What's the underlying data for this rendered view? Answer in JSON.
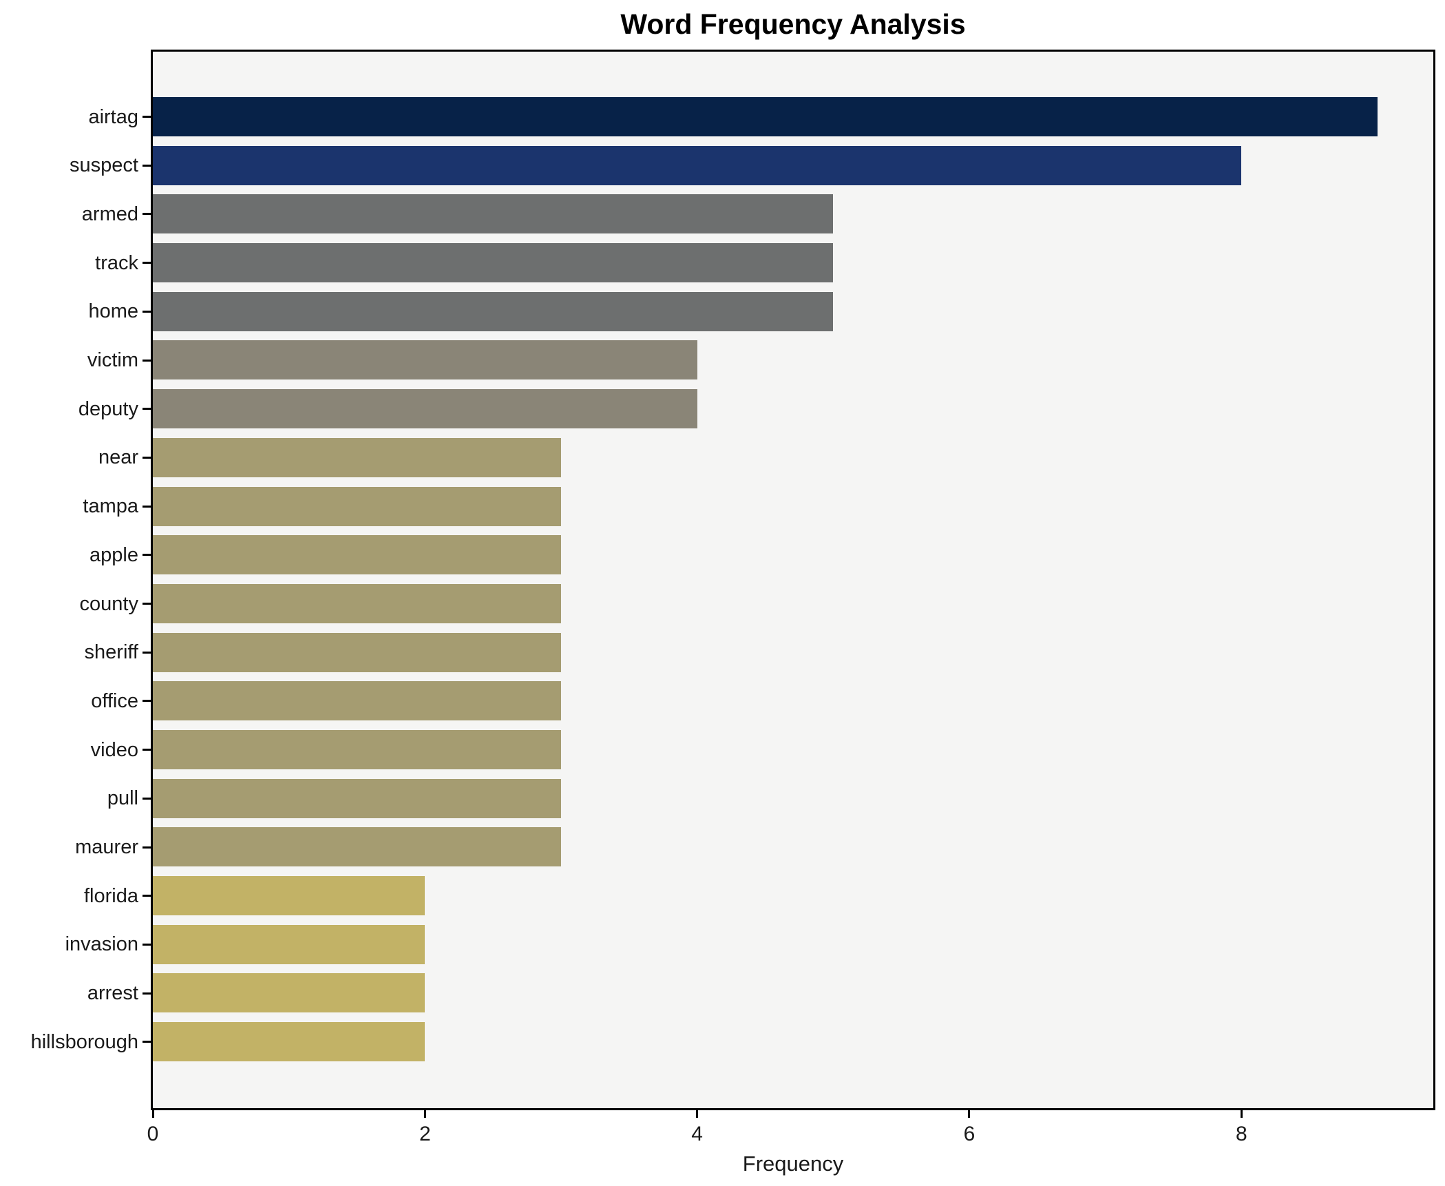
{
  "chart_data": {
    "type": "bar",
    "orientation": "horizontal",
    "title": "Word Frequency Analysis",
    "xlabel": "Frequency",
    "ylabel": "",
    "categories": [
      "airtag",
      "suspect",
      "armed",
      "track",
      "home",
      "victim",
      "deputy",
      "near",
      "tampa",
      "apple",
      "county",
      "sheriff",
      "office",
      "video",
      "pull",
      "maurer",
      "florida",
      "invasion",
      "arrest",
      "hillsborough"
    ],
    "values": [
      9,
      8,
      5,
      5,
      5,
      4,
      4,
      3,
      3,
      3,
      3,
      3,
      3,
      3,
      3,
      3,
      2,
      2,
      2,
      2
    ],
    "bar_colors": [
      "#072248",
      "#1b346d",
      "#6d6f6f",
      "#6d6f6f",
      "#6d6f6f",
      "#8a8577",
      "#8a8577",
      "#a59c71",
      "#a59c71",
      "#a59c71",
      "#a59c71",
      "#a59c71",
      "#a59c71",
      "#a59c71",
      "#a59c71",
      "#a59c71",
      "#c2b266",
      "#c2b266",
      "#c2b266",
      "#c2b266"
    ],
    "xticks": [
      0,
      2,
      4,
      6,
      8
    ],
    "xlim": [
      0,
      9.41
    ],
    "grid": false,
    "legend_position": "none",
    "plot_background": "#f5f5f4",
    "figure_background": "#ffffff",
    "axis_color": "#000000",
    "text_color": "#1a1a1a"
  }
}
